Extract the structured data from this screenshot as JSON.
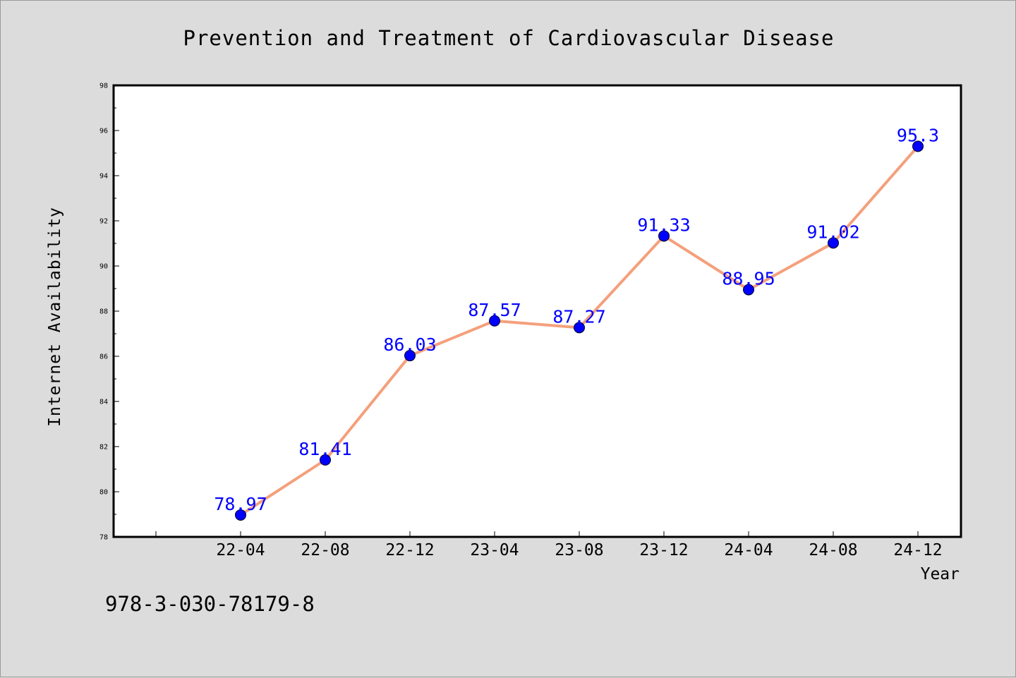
{
  "chart_data": {
    "type": "line",
    "title": "Prevention and Treatment of Cardiovascular Disease",
    "xlabel": "Year",
    "ylabel": "Internet Availability",
    "categories": [
      "22-04",
      "22-08",
      "22-12",
      "23-04",
      "23-08",
      "23-12",
      "24-04",
      "24-08",
      "24-12"
    ],
    "values": [
      78.97,
      81.41,
      86.03,
      87.57,
      87.27,
      91.33,
      88.95,
      91.02,
      95.3
    ],
    "data_labels": [
      "78.97",
      "81.41",
      "86.03",
      "87.57",
      "87.27",
      "91.33",
      "88.95",
      "91.02",
      "95.3"
    ],
    "ylim": [
      78,
      98
    ],
    "yticks": [
      "78",
      "80",
      "82",
      "84",
      "86",
      "88",
      "90",
      "92",
      "94",
      "96",
      "98"
    ],
    "grid": false,
    "line_color": "#f4a07c",
    "marker_color": "#0000ff",
    "label_color": "#0000ff"
  },
  "annotation": {
    "isbn": "978-3-030-78179-8"
  }
}
